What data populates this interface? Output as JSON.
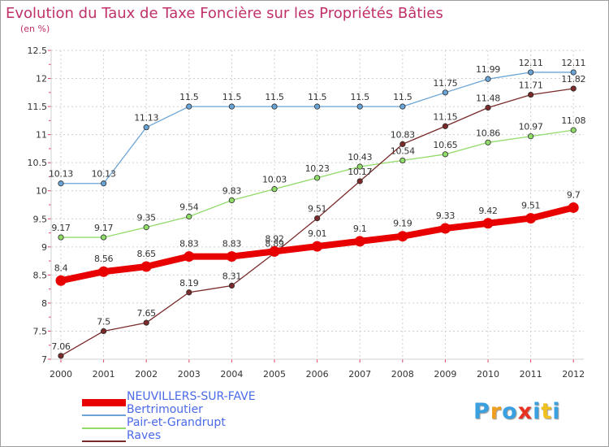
{
  "title": "Evolution du Taux de Taxe Foncière sur les Propriétés Bâties",
  "subtitle": "(en %)",
  "chart_data": {
    "type": "line",
    "title": "Evolution du Taux de Taxe Foncière sur les Propriétés Bâties",
    "ylabel": "(en %)",
    "xlabel": "",
    "x": [
      "2000",
      "2001",
      "2002",
      "2003",
      "2004",
      "2005",
      "2006",
      "2007",
      "2008",
      "2009",
      "2010",
      "2011",
      "2012"
    ],
    "ylim": [
      7,
      12.5
    ],
    "yticks": [
      "7",
      "7.5",
      "8",
      "8.5",
      "9",
      "9.5",
      "10",
      "10.5",
      "11",
      "11.5",
      "12",
      "12.5"
    ],
    "grid": true,
    "legend_position": "bottom-left",
    "series": [
      {
        "name": "NEUVILLERS-SUR-FAVE",
        "color": "#e80000",
        "values": [
          8.4,
          8.56,
          8.65,
          8.83,
          8.83,
          8.92,
          9.01,
          9.1,
          9.19,
          9.33,
          9.42,
          9.51,
          9.7
        ],
        "labels": [
          "8.4",
          "8.56",
          "8.65",
          "8.83",
          "8.83",
          "8.92",
          "9.01",
          "9.1",
          "9.19",
          "9.33",
          "9.42",
          "9.51",
          "9.7"
        ]
      },
      {
        "name": "Bertrimoutier",
        "color": "#6aa4d6",
        "values": [
          10.13,
          10.13,
          11.13,
          11.5,
          11.5,
          11.5,
          11.5,
          11.5,
          11.5,
          11.75,
          11.99,
          12.11,
          12.11
        ],
        "labels": [
          "10.13",
          "10.13",
          "11.13",
          "11.5",
          "11.5",
          "11.5",
          "11.5",
          "11.5",
          "11.5",
          "11.75",
          "11.99",
          "12.11",
          "12.11"
        ]
      },
      {
        "name": "Pair-et-Grandrupt",
        "color": "#90dc68",
        "values": [
          9.17,
          9.17,
          9.35,
          9.54,
          9.83,
          10.03,
          10.23,
          10.43,
          10.54,
          10.65,
          10.86,
          10.97,
          11.08
        ],
        "labels": [
          "9.17",
          "9.17",
          "9.35",
          "9.54",
          "9.83",
          "10.03",
          "10.23",
          "10.43",
          "10.54",
          "10.65",
          "10.86",
          "10.97",
          "11.08"
        ]
      },
      {
        "name": "Raves",
        "color": "#7a2a2a",
        "values": [
          7.06,
          7.5,
          7.65,
          8.19,
          8.31,
          8.89,
          9.51,
          10.17,
          10.83,
          11.15,
          11.48,
          11.71,
          11.82
        ],
        "labels": [
          "7.06",
          "7.5",
          "7.65",
          "8.19",
          "8.31",
          "8.89",
          "9.51",
          "10.17",
          "10.83",
          "11.15",
          "11.48",
          "11.71",
          "11.82"
        ]
      }
    ]
  },
  "legend": [
    {
      "label": "NEUVILLERS-SUR-FAVE",
      "color": "#e80000"
    },
    {
      "label": "Bertrimoutier",
      "color": "#6aa4d6"
    },
    {
      "label": "Pair-et-Grandrupt",
      "color": "#90dc68"
    },
    {
      "label": "Raves",
      "color": "#7a2a2a"
    }
  ],
  "logo": {
    "letters": [
      "P",
      "r",
      "o",
      "x",
      "i",
      "t",
      "i"
    ],
    "colors": [
      "#3aa0e0",
      "#f0a020",
      "#3aa0e0",
      "#e83020",
      "#3aa0e0",
      "#f0c020",
      "#3aa0e0"
    ]
  }
}
